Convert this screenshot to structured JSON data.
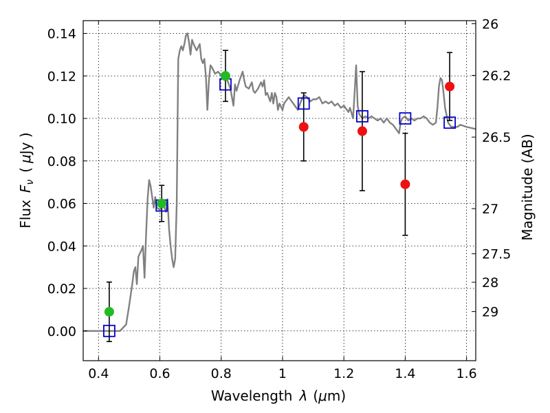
{
  "chart_data": {
    "type": "scatter",
    "xlabel_text": "Wavelength",
    "xlabel_var": "λ",
    "xlabel_unit_open": "(",
    "xlabel_unit_mu": "μ",
    "xlabel_unit_rest": "m)",
    "ylabel_text": "Flux",
    "ylabel_var": "F",
    "ylabel_sub": "ν",
    "ylabel_unit_open": "(",
    "ylabel_unit_mu": "μ",
    "ylabel_unit_rest": "Jy )",
    "y2label": "Magnitude (AB)",
    "xlim": [
      0.35,
      1.63
    ],
    "ylim": [
      -0.014,
      0.146
    ],
    "grid": true,
    "x_ticks": [
      {
        "value": 0.4,
        "label": "0.4"
      },
      {
        "value": 0.6,
        "label": "0.6"
      },
      {
        "value": 0.8,
        "label": "0.8"
      },
      {
        "value": 1.0,
        "label": "1"
      },
      {
        "value": 1.2,
        "label": "1.2"
      },
      {
        "value": 1.4,
        "label": "1.4"
      },
      {
        "value": 1.6,
        "label": "1.6"
      }
    ],
    "y_ticks": [
      {
        "value": 0.0,
        "label": "0.00"
      },
      {
        "value": 0.02,
        "label": "0.02"
      },
      {
        "value": 0.04,
        "label": "0.04"
      },
      {
        "value": 0.06,
        "label": "0.06"
      },
      {
        "value": 0.08,
        "label": "0.08"
      },
      {
        "value": 0.1,
        "label": "0.10"
      },
      {
        "value": 0.12,
        "label": "0.12"
      },
      {
        "value": 0.14,
        "label": "0.14"
      }
    ],
    "mag_ticks": [
      {
        "mag": 26,
        "label": "26"
      },
      {
        "mag": 26.2,
        "label": "26.2"
      },
      {
        "mag": 26.5,
        "label": "26.5"
      },
      {
        "mag": 27,
        "label": "27"
      },
      {
        "mag": 27.5,
        "label": "27.5"
      },
      {
        "mag": 28,
        "label": "28"
      },
      {
        "mag": 29,
        "label": "29"
      }
    ],
    "model_spectrum": {
      "color": "#808080",
      "points": [
        [
          0.35,
          0.0
        ],
        [
          0.43,
          0.0
        ],
        [
          0.47,
          0.0
        ],
        [
          0.49,
          0.003
        ],
        [
          0.5,
          0.012
        ],
        [
          0.51,
          0.022
        ],
        [
          0.515,
          0.028
        ],
        [
          0.52,
          0.03
        ],
        [
          0.525,
          0.022
        ],
        [
          0.53,
          0.035
        ],
        [
          0.54,
          0.038
        ],
        [
          0.545,
          0.04
        ],
        [
          0.55,
          0.025
        ],
        [
          0.555,
          0.045
        ],
        [
          0.56,
          0.062
        ],
        [
          0.565,
          0.071
        ],
        [
          0.57,
          0.068
        ],
        [
          0.58,
          0.058
        ],
        [
          0.585,
          0.063
        ],
        [
          0.59,
          0.058
        ],
        [
          0.6,
          0.057
        ],
        [
          0.61,
          0.06
        ],
        [
          0.62,
          0.056
        ],
        [
          0.625,
          0.062
        ],
        [
          0.63,
          0.048
        ],
        [
          0.635,
          0.04
        ],
        [
          0.64,
          0.034
        ],
        [
          0.645,
          0.03
        ],
        [
          0.65,
          0.034
        ],
        [
          0.655,
          0.06
        ],
        [
          0.66,
          0.128
        ],
        [
          0.665,
          0.132
        ],
        [
          0.67,
          0.134
        ],
        [
          0.675,
          0.132
        ],
        [
          0.68,
          0.135
        ],
        [
          0.685,
          0.139
        ],
        [
          0.69,
          0.14
        ],
        [
          0.695,
          0.136
        ],
        [
          0.7,
          0.13
        ],
        [
          0.705,
          0.137
        ],
        [
          0.71,
          0.135
        ],
        [
          0.72,
          0.132
        ],
        [
          0.73,
          0.135
        ],
        [
          0.735,
          0.128
        ],
        [
          0.74,
          0.126
        ],
        [
          0.745,
          0.128
        ],
        [
          0.75,
          0.12
        ],
        [
          0.755,
          0.104
        ],
        [
          0.76,
          0.118
        ],
        [
          0.765,
          0.125
        ],
        [
          0.77,
          0.124
        ],
        [
          0.78,
          0.121
        ],
        [
          0.79,
          0.122
        ],
        [
          0.8,
          0.12
        ],
        [
          0.81,
          0.118
        ],
        [
          0.82,
          0.118
        ],
        [
          0.83,
          0.114
        ],
        [
          0.84,
          0.106
        ],
        [
          0.845,
          0.116
        ],
        [
          0.85,
          0.113
        ],
        [
          0.86,
          0.118
        ],
        [
          0.87,
          0.122
        ],
        [
          0.875,
          0.118
        ],
        [
          0.88,
          0.115
        ],
        [
          0.89,
          0.114
        ],
        [
          0.9,
          0.117
        ],
        [
          0.905,
          0.113
        ],
        [
          0.91,
          0.112
        ],
        [
          0.92,
          0.114
        ],
        [
          0.93,
          0.117
        ],
        [
          0.935,
          0.115
        ],
        [
          0.94,
          0.118
        ],
        [
          0.945,
          0.111
        ],
        [
          0.95,
          0.112
        ],
        [
          0.96,
          0.108
        ],
        [
          0.965,
          0.112
        ],
        [
          0.97,
          0.107
        ],
        [
          0.975,
          0.112
        ],
        [
          0.98,
          0.11
        ],
        [
          0.985,
          0.104
        ],
        [
          0.99,
          0.107
        ],
        [
          1.0,
          0.104
        ],
        [
          1.005,
          0.107
        ],
        [
          1.01,
          0.108
        ],
        [
          1.02,
          0.11
        ],
        [
          1.03,
          0.108
        ],
        [
          1.04,
          0.106
        ],
        [
          1.05,
          0.104
        ],
        [
          1.06,
          0.108
        ],
        [
          1.07,
          0.111
        ],
        [
          1.08,
          0.11
        ],
        [
          1.09,
          0.108
        ],
        [
          1.1,
          0.109
        ],
        [
          1.11,
          0.109
        ],
        [
          1.12,
          0.11
        ],
        [
          1.13,
          0.107
        ],
        [
          1.14,
          0.108
        ],
        [
          1.15,
          0.107
        ],
        [
          1.16,
          0.108
        ],
        [
          1.17,
          0.106
        ],
        [
          1.18,
          0.107
        ],
        [
          1.19,
          0.105
        ],
        [
          1.2,
          0.106
        ],
        [
          1.21,
          0.104
        ],
        [
          1.215,
          0.103
        ],
        [
          1.22,
          0.105
        ],
        [
          1.23,
          0.1
        ],
        [
          1.235,
          0.112
        ],
        [
          1.24,
          0.125
        ],
        [
          1.245,
          0.106
        ],
        [
          1.25,
          0.102
        ],
        [
          1.26,
          0.1
        ],
        [
          1.27,
          0.101
        ],
        [
          1.28,
          0.1
        ],
        [
          1.29,
          0.101
        ],
        [
          1.3,
          0.1
        ],
        [
          1.31,
          0.099
        ],
        [
          1.32,
          0.1
        ],
        [
          1.33,
          0.098
        ],
        [
          1.34,
          0.1
        ],
        [
          1.35,
          0.098
        ],
        [
          1.36,
          0.097
        ],
        [
          1.37,
          0.095
        ],
        [
          1.38,
          0.093
        ],
        [
          1.385,
          0.098
        ],
        [
          1.39,
          0.1
        ],
        [
          1.4,
          0.101
        ],
        [
          1.41,
          0.099
        ],
        [
          1.42,
          0.1
        ],
        [
          1.43,
          0.099
        ],
        [
          1.44,
          0.1
        ],
        [
          1.45,
          0.1
        ],
        [
          1.46,
          0.101
        ],
        [
          1.47,
          0.1
        ],
        [
          1.48,
          0.098
        ],
        [
          1.49,
          0.097
        ],
        [
          1.5,
          0.098
        ],
        [
          1.505,
          0.105
        ],
        [
          1.51,
          0.115
        ],
        [
          1.515,
          0.119
        ],
        [
          1.52,
          0.118
        ],
        [
          1.525,
          0.112
        ],
        [
          1.53,
          0.105
        ],
        [
          1.54,
          0.098
        ],
        [
          1.55,
          0.096
        ],
        [
          1.57,
          0.096
        ],
        [
          1.58,
          0.097
        ],
        [
          1.6,
          0.096
        ],
        [
          1.63,
          0.095
        ]
      ]
    },
    "series": [
      {
        "marker": "open-square",
        "color": "#0000cc",
        "points": [
          {
            "x": 0.435,
            "y": 0.0
          },
          {
            "x": 0.606,
            "y": 0.059
          },
          {
            "x": 0.814,
            "y": 0.116
          },
          {
            "x": 1.069,
            "y": 0.107
          },
          {
            "x": 1.26,
            "y": 0.101
          },
          {
            "x": 1.4,
            "y": 0.1
          },
          {
            "x": 1.545,
            "y": 0.098
          }
        ]
      },
      {
        "marker": "filled-circle",
        "color": "#22bb22",
        "points": [
          {
            "x": 0.435,
            "y": 0.009,
            "err": 0.014
          },
          {
            "x": 0.606,
            "y": 0.06,
            "err": 0.0085
          },
          {
            "x": 0.814,
            "y": 0.12,
            "err": 0.012
          }
        ]
      },
      {
        "marker": "filled-circle",
        "color": "#ee1111",
        "points": [
          {
            "x": 1.069,
            "y": 0.096,
            "err": 0.016
          },
          {
            "x": 1.26,
            "y": 0.094,
            "err": 0.028
          },
          {
            "x": 1.4,
            "y": 0.069,
            "err": 0.024
          },
          {
            "x": 1.545,
            "y": 0.115,
            "err": 0.016
          }
        ]
      }
    ]
  }
}
